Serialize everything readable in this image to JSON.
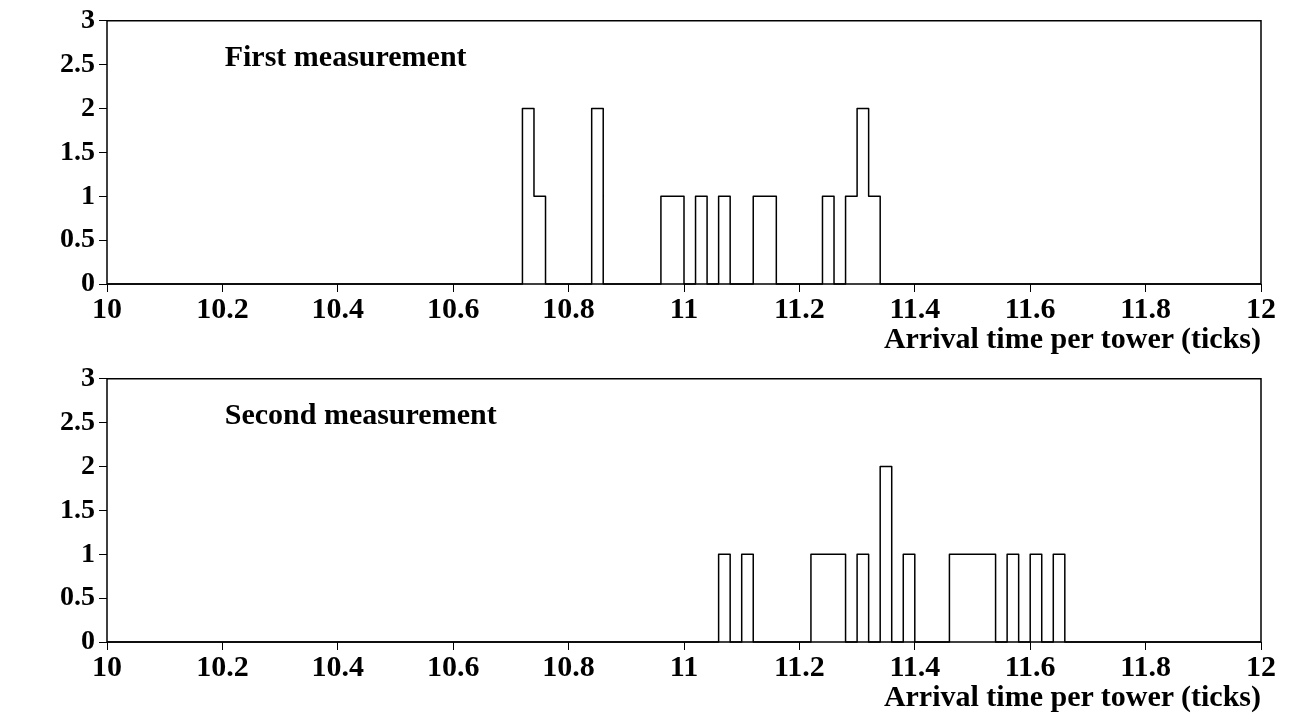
{
  "chart_data": [
    {
      "type": "histogram",
      "title": "First measurement",
      "xlabel": "Arrival time per tower (ticks)",
      "color": "#000000",
      "grid": false,
      "legend": false,
      "bins": [
        10,
        10.72,
        10.74,
        10.76,
        10.84,
        10.86,
        10.96,
        10.98,
        11.0,
        11.02,
        11.04,
        11.06,
        11.08,
        11.12,
        11.14,
        11.16,
        11.24,
        11.26,
        11.28,
        11.3,
        11.32,
        11.34,
        12
      ],
      "values": [
        0,
        2,
        1,
        0,
        2,
        0,
        1,
        1,
        0,
        1,
        0,
        1,
        0,
        1,
        1,
        0,
        1,
        0,
        1,
        2,
        1,
        0
      ],
      "xlim": [
        10,
        12
      ],
      "xticks": [
        10,
        10.2,
        10.4,
        10.6,
        10.8,
        11,
        11.2,
        11.4,
        11.6,
        11.8,
        12
      ],
      "ylim": [
        0,
        3
      ],
      "yticks": [
        0,
        0.5,
        1,
        1.5,
        2,
        2.5,
        3
      ]
    },
    {
      "type": "histogram",
      "title": "Second measurement",
      "xlabel": "Arrival time per tower (ticks)",
      "color": "#000000",
      "grid": false,
      "legend": false,
      "bins": [
        10,
        11.06,
        11.08,
        11.1,
        11.12,
        11.22,
        11.28,
        11.3,
        11.32,
        11.34,
        11.36,
        11.38,
        11.4,
        11.46,
        11.54,
        11.56,
        11.58,
        11.6,
        11.62,
        11.64,
        11.66,
        12
      ],
      "values": [
        0,
        1,
        0,
        1,
        0,
        1,
        0,
        1,
        0,
        2,
        0,
        1,
        0,
        1,
        0,
        1,
        0,
        1,
        0,
        1,
        0
      ],
      "xlim": [
        10,
        12
      ],
      "xticks": [
        10,
        10.2,
        10.4,
        10.6,
        10.8,
        11,
        11.2,
        11.4,
        11.6,
        11.8,
        12
      ],
      "ylim": [
        0,
        3
      ],
      "yticks": [
        0,
        0.5,
        1,
        1.5,
        2,
        2.5,
        3
      ]
    }
  ]
}
